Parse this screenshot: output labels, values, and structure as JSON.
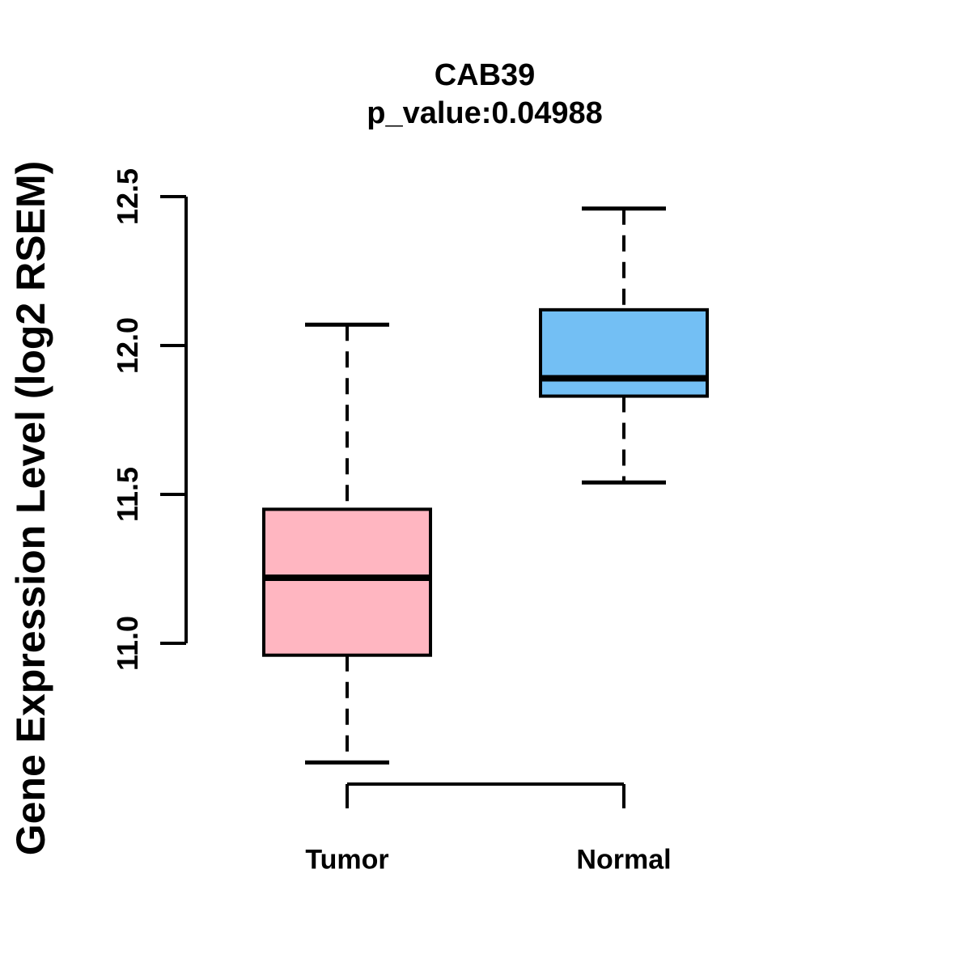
{
  "title": "CAB39",
  "subtitle": "p_value:0.04988",
  "y_axis": {
    "label": "Gene Expression Level (log2 RSEM)",
    "tick_labels": [
      "11.0",
      "11.5",
      "12.0",
      "12.5"
    ]
  },
  "colors": {
    "tumor_fill": "#FFB6C1",
    "normal_fill": "#73BFF4",
    "line": "#000000",
    "background": "#FFFFFF"
  },
  "chart_data": {
    "type": "boxplot",
    "title": "CAB39",
    "subtitle": "p_value:0.04988",
    "ylabel": "Gene Expression Level (log2 RSEM)",
    "xlabel": "",
    "categories": [
      "Tumor",
      "Normal"
    ],
    "yticks": [
      11.0,
      11.5,
      12.0,
      12.5
    ],
    "ylim": [
      10.45,
      12.55
    ],
    "grid": false,
    "series": [
      {
        "name": "Tumor",
        "color": "#FFB6C1",
        "whisker_low": 10.6,
        "q1": 10.96,
        "median": 11.22,
        "q3": 11.45,
        "whisker_high": 12.07,
        "outliers": []
      },
      {
        "name": "Normal",
        "color": "#73BFF4",
        "whisker_low": 11.54,
        "q1": 11.83,
        "median": 11.89,
        "q3": 12.12,
        "whisker_high": 12.46,
        "outliers": []
      }
    ]
  }
}
